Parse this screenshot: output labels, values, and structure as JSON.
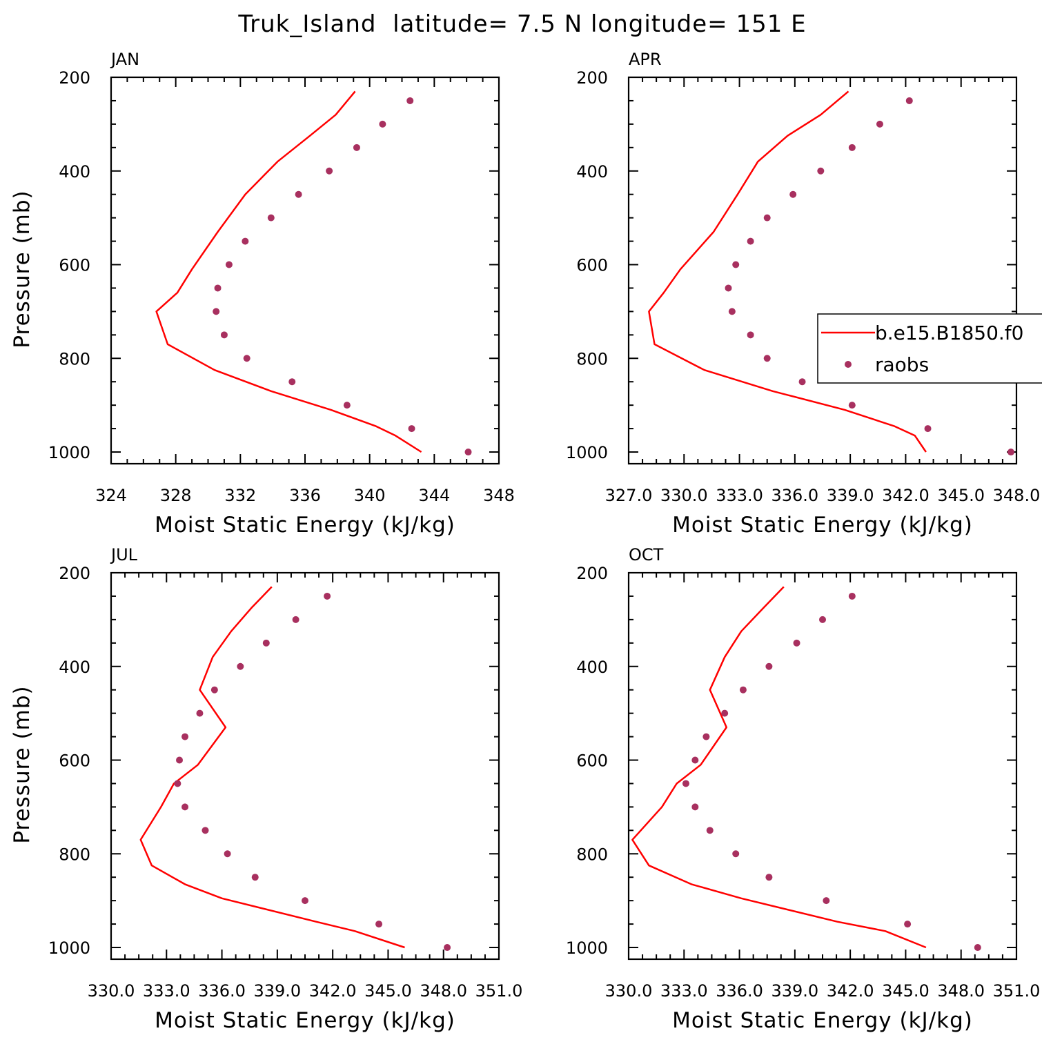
{
  "figure_title": "Truk_Island  latitude= 7.5 N longitude= 151 E",
  "colors": {
    "model": "#ff0000",
    "obs": "#a8305f",
    "axis": "#000000"
  },
  "legend": {
    "model_label": "b.e15.B1850.f0",
    "obs_label": "raobs",
    "placement": "right-middle of APR panel"
  },
  "chart_data": [
    {
      "type": "line",
      "title": "JAN",
      "xlabel": "Moist Static Energy (kJ/kg)",
      "ylabel": "Pressure (mb)",
      "xlim": [
        324,
        348
      ],
      "ylim": [
        200,
        1025
      ],
      "xticks": [
        324,
        328,
        332,
        336,
        340,
        344,
        348
      ],
      "xtick_labels": [
        "324",
        "328",
        "332",
        "336",
        "340",
        "344",
        "348"
      ],
      "yticks": [
        200,
        400,
        600,
        800,
        1000
      ],
      "ytick_labels": [
        "200",
        "400",
        "600",
        "800",
        "1000"
      ],
      "series": [
        {
          "name": "b.e15.B1850.f0",
          "kind": "line",
          "x": [
            339.1,
            337.9,
            336.3,
            334.3,
            332.3,
            330.6,
            329.0,
            328.1,
            326.8,
            327.5,
            330.4,
            333.9,
            337.6,
            340.4,
            341.6,
            343.2
          ],
          "y": [
            230,
            280,
            325,
            380,
            450,
            530,
            610,
            660,
            700,
            770,
            825,
            870,
            910,
            945,
            965,
            1000
          ]
        },
        {
          "name": "raobs",
          "kind": "scatter",
          "x": [
            342.5,
            340.8,
            339.2,
            337.5,
            335.6,
            333.9,
            332.3,
            331.3,
            330.6,
            330.5,
            331.0,
            332.4,
            335.2,
            338.6,
            342.6,
            346.1
          ],
          "y": [
            250,
            300,
            350,
            400,
            450,
            500,
            550,
            600,
            650,
            700,
            750,
            800,
            850,
            900,
            950,
            1000
          ]
        }
      ]
    },
    {
      "type": "line",
      "title": "APR",
      "xlabel": "Moist Static Energy (kJ/kg)",
      "ylabel": "",
      "xlim": [
        327.0,
        348.0
      ],
      "ylim": [
        200,
        1025
      ],
      "xticks": [
        327.0,
        330.0,
        333.0,
        336.0,
        339.0,
        342.0,
        345.0,
        348.0
      ],
      "xtick_labels": [
        "327.0",
        "330.0",
        "333.0",
        "336.0",
        "339.0",
        "342.0",
        "345.0",
        "348.0"
      ],
      "yticks": [
        200,
        400,
        600,
        800,
        1000
      ],
      "ytick_labels": [
        "200",
        "400",
        "600",
        "800",
        "1000"
      ],
      "series": [
        {
          "name": "b.e15.B1850.f0",
          "kind": "line",
          "x": [
            338.9,
            337.4,
            335.6,
            334.0,
            332.9,
            331.6,
            329.8,
            328.9,
            328.1,
            328.4,
            331.1,
            334.8,
            338.7,
            341.4,
            342.5,
            343.1
          ],
          "y": [
            230,
            280,
            325,
            380,
            450,
            530,
            610,
            660,
            700,
            770,
            825,
            870,
            910,
            945,
            965,
            1000
          ]
        },
        {
          "name": "raobs",
          "kind": "scatter",
          "x": [
            342.2,
            340.6,
            339.1,
            337.4,
            335.9,
            334.5,
            333.6,
            332.8,
            332.4,
            332.6,
            333.6,
            334.5,
            336.4,
            339.1,
            343.2,
            347.7
          ],
          "y": [
            250,
            300,
            350,
            400,
            450,
            500,
            550,
            600,
            650,
            700,
            750,
            800,
            850,
            900,
            950,
            1000
          ]
        }
      ]
    },
    {
      "type": "line",
      "title": "JUL",
      "xlabel": "Moist Static Energy (kJ/kg)",
      "ylabel": "Pressure (mb)",
      "xlim": [
        330.0,
        351.0
      ],
      "ylim": [
        200,
        1025
      ],
      "xticks": [
        330.0,
        333.0,
        336.0,
        339.0,
        342.0,
        345.0,
        348.0,
        351.0
      ],
      "xtick_labels": [
        "330.0",
        "333.0",
        "336.0",
        "339.0",
        "342.0",
        "345.0",
        "348.0",
        "351.0"
      ],
      "yticks": [
        200,
        400,
        600,
        800,
        1000
      ],
      "ytick_labels": [
        "200",
        "400",
        "600",
        "800",
        "1000"
      ],
      "series": [
        {
          "name": "b.e15.B1850.f0",
          "kind": "line",
          "x": [
            338.7,
            337.6,
            336.5,
            335.5,
            334.8,
            336.2,
            334.7,
            333.4,
            332.7,
            331.6,
            332.2,
            334.0,
            336.0,
            341.1,
            343.2,
            345.9
          ],
          "y": [
            230,
            275,
            325,
            380,
            450,
            530,
            610,
            650,
            700,
            770,
            825,
            865,
            895,
            945,
            965,
            1000
          ]
        },
        {
          "name": "raobs",
          "kind": "scatter",
          "x": [
            341.7,
            340.0,
            338.4,
            337.0,
            335.6,
            334.8,
            334.0,
            333.7,
            333.6,
            334.0,
            335.1,
            336.3,
            337.8,
            340.5,
            344.5,
            348.2
          ],
          "y": [
            250,
            300,
            350,
            400,
            450,
            500,
            550,
            600,
            650,
            700,
            750,
            800,
            850,
            900,
            950,
            1000
          ]
        }
      ]
    },
    {
      "type": "line",
      "title": "OCT",
      "xlabel": "Moist Static Energy (kJ/kg)",
      "ylabel": "",
      "xlim": [
        330.0,
        351.0
      ],
      "ylim": [
        200,
        1025
      ],
      "xticks": [
        330.0,
        333.0,
        336.0,
        339.0,
        342.0,
        345.0,
        348.0,
        351.0
      ],
      "xtick_labels": [
        "330.0",
        "333.0",
        "336.0",
        "339.0",
        "342.0",
        "345.0",
        "348.0",
        "351.0"
      ],
      "yticks": [
        200,
        400,
        600,
        800,
        1000
      ],
      "ytick_labels": [
        "200",
        "400",
        "600",
        "800",
        "1000"
      ],
      "series": [
        {
          "name": "b.e15.B1850.f0",
          "kind": "line",
          "x": [
            338.4,
            337.3,
            336.1,
            335.2,
            334.4,
            335.3,
            333.9,
            332.6,
            331.8,
            330.2,
            331.1,
            333.4,
            336.1,
            341.3,
            343.9,
            346.1
          ],
          "y": [
            230,
            275,
            325,
            380,
            450,
            530,
            610,
            650,
            700,
            770,
            825,
            865,
            895,
            945,
            965,
            1000
          ]
        },
        {
          "name": "raobs",
          "kind": "scatter",
          "x": [
            342.1,
            340.5,
            339.1,
            337.6,
            336.2,
            335.2,
            334.2,
            333.6,
            333.1,
            333.6,
            334.4,
            335.8,
            337.6,
            340.7,
            345.1,
            348.9
          ],
          "y": [
            250,
            300,
            350,
            400,
            450,
            500,
            550,
            600,
            650,
            700,
            750,
            800,
            850,
            900,
            950,
            1000
          ]
        }
      ]
    }
  ]
}
